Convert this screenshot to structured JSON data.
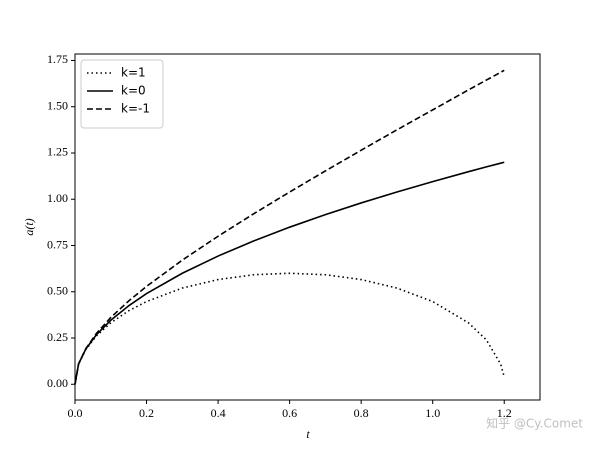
{
  "chart_data": {
    "type": "line",
    "xlabel": "t",
    "ylabel": "a(t)",
    "x": [
      0,
      0.01,
      0.03,
      0.06,
      0.1,
      0.15,
      0.2,
      0.3,
      0.4,
      0.5,
      0.6,
      0.7,
      0.8,
      0.9,
      1.0,
      1.1,
      1.15,
      1.19,
      1.2
    ],
    "series": [
      {
        "name": "k=1",
        "color": "#000000",
        "linestyle": "dotted",
        "values": [
          0,
          0.109,
          0.187,
          0.262,
          0.332,
          0.397,
          0.447,
          0.52,
          0.566,
          0.592,
          0.6,
          0.592,
          0.566,
          0.52,
          0.447,
          0.332,
          0.24,
          0.109,
          0.04
        ]
      },
      {
        "name": "k=0",
        "color": "#000000",
        "linestyle": "solid",
        "values": [
          0,
          0.11,
          0.19,
          0.268,
          0.346,
          0.424,
          0.49,
          0.6,
          0.693,
          0.775,
          0.849,
          0.917,
          0.98,
          1.039,
          1.095,
          1.149,
          1.175,
          1.195,
          1.2
        ]
      },
      {
        "name": "k=-1",
        "color": "#000000",
        "linestyle": "dashed",
        "values": [
          0,
          0.11,
          0.192,
          0.275,
          0.361,
          0.45,
          0.529,
          0.671,
          0.8,
          0.922,
          1.039,
          1.153,
          1.265,
          1.375,
          1.483,
          1.591,
          1.644,
          1.686,
          1.697
        ]
      }
    ],
    "xlim": [
      0,
      1.3
    ],
    "xticks": [
      {
        "value": 0,
        "label": "0.0"
      },
      0.2,
      0.4,
      0.6,
      0.8,
      {
        "value": 1,
        "label": "1.0"
      },
      1.2
    ],
    "ylim": [
      -0.085,
      1.785
    ],
    "yticks": [
      {
        "value": 0,
        "label": "0.00"
      },
      0.25,
      {
        "value": 0.5,
        "label": "0.50"
      },
      0.75,
      {
        "value": 1,
        "label": "1.00"
      },
      1.25,
      {
        "value": 1.5,
        "label": "1.50"
      },
      1.75
    ],
    "grid": false,
    "legend": "upper left",
    "annotations": [
      "知乎 @Cy.Comet"
    ]
  }
}
